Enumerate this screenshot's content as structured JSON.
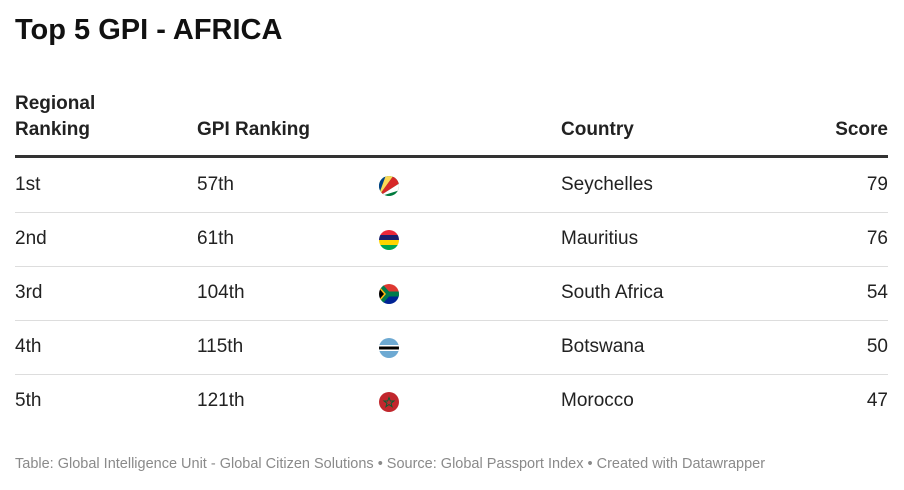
{
  "header": {
    "title": "Top 5 GPI - AFRICA"
  },
  "table": {
    "columns": {
      "regional": "Regional Ranking",
      "gpi": "GPI Ranking",
      "country": "Country",
      "score": "Score"
    },
    "rows": [
      {
        "regional": "1st",
        "gpi": "57th",
        "country": "Seychelles",
        "score": 79
      },
      {
        "regional": "2nd",
        "gpi": "61th",
        "country": "Mauritius",
        "score": 76
      },
      {
        "regional": "3rd",
        "gpi": "104th",
        "country": "South Africa",
        "score": 54
      },
      {
        "regional": "4th",
        "gpi": "115th",
        "country": "Botswana",
        "score": 50
      },
      {
        "regional": "5th",
        "gpi": "121th",
        "country": "Morocco",
        "score": 47
      }
    ]
  },
  "footer": {
    "text": "Table: Global Intelligence Unit - Global Citizen Solutions • Source: Global Passport Index • Created with Datawrapper"
  }
}
